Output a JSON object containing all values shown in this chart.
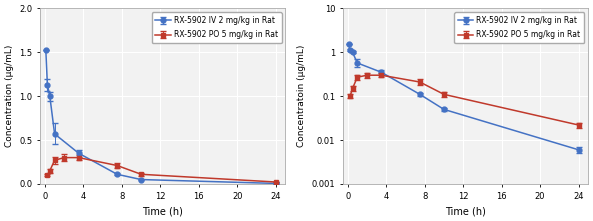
{
  "iv_time": [
    0.083,
    0.25,
    0.5,
    1.0,
    3.5,
    7.5,
    10.0,
    24.0
  ],
  "iv_conc": [
    1.53,
    1.13,
    1.0,
    0.57,
    0.35,
    0.11,
    0.05,
    0.006
  ],
  "iv_err_lo": [
    0.0,
    0.07,
    0.05,
    0.12,
    0.04,
    0.01,
    0.005,
    0.001
  ],
  "iv_err_hi": [
    0.0,
    0.07,
    0.05,
    0.12,
    0.04,
    0.01,
    0.005,
    0.001
  ],
  "po_time": [
    0.25,
    0.5,
    1.0,
    2.0,
    3.5,
    7.5,
    10.0,
    24.0
  ],
  "po_conc": [
    0.1,
    0.15,
    0.27,
    0.3,
    0.3,
    0.21,
    0.11,
    0.022
  ],
  "po_err_lo": [
    0.01,
    0.02,
    0.04,
    0.04,
    0.03,
    0.03,
    0.015,
    0.003
  ],
  "po_err_hi": [
    0.01,
    0.02,
    0.04,
    0.04,
    0.03,
    0.03,
    0.015,
    0.003
  ],
  "iv_color": "#4472C4",
  "po_color": "#C0392B",
  "iv_label": "RX-5902 IV 2 mg/kg in Rat",
  "po_label": "RX-5902 PO 5 mg/kg in Rat",
  "xlabel": "Time (h)",
  "ylabel_linear": "Concentration (μg/mL)",
  "ylabel_log": "Concentratoin (μg/mL)",
  "xlim": [
    -0.5,
    25
  ],
  "xticks": [
    0,
    4,
    8,
    12,
    16,
    20,
    24
  ],
  "ylim_linear": [
    0,
    2.0
  ],
  "yticks_linear": [
    0,
    0.5,
    1.0,
    1.5,
    2.0
  ],
  "ylim_log": [
    0.001,
    10
  ],
  "plot_bg": "#f2f2f2",
  "grid_color": "#ffffff",
  "legend_bg": "#ffffff"
}
